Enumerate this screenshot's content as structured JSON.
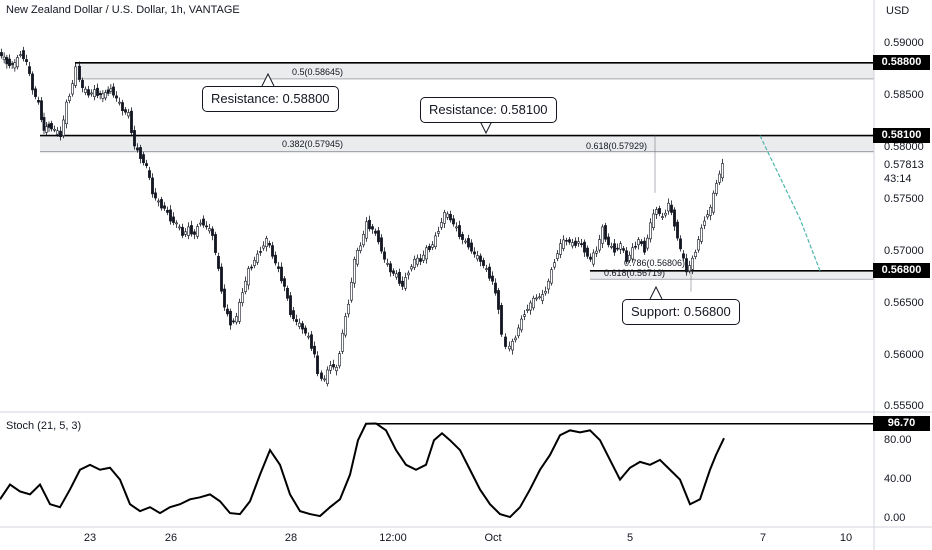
{
  "header": {
    "title": "New Zealand Dollar / U.S. Dollar, 1h, VANTAGE",
    "currency": "USD"
  },
  "stoch": {
    "label": "Stoch (21, 5, 3)",
    "level_badge": "96.70",
    "ticks": [
      "80.00",
      "40.00",
      "0.00"
    ]
  },
  "price_axis": {
    "ticks": [
      "0.59000",
      "0.58500",
      "0.58000",
      "0.57500",
      "0.57000",
      "0.56500",
      "0.56000",
      "0.55500"
    ],
    "last_price": "0.57813",
    "countdown": "43:14"
  },
  "time_axis": {
    "ticks": [
      "23",
      "26",
      "28",
      "12:00",
      "Oct",
      "5",
      "7",
      "10"
    ]
  },
  "levels": {
    "resistance_high": {
      "price": 0.588,
      "badge": "0.58800",
      "callout": "Resistance: 0.58800"
    },
    "resistance_low": {
      "price": 0.581,
      "badge": "0.58100",
      "callout": "Resistance: 0.58100"
    },
    "support": {
      "price": 0.568,
      "badge": "0.56800",
      "callout": "Support: 0.56800"
    }
  },
  "fib_labels": {
    "f1": "0.5(0.58645)",
    "f2": "0.382(0.57945)",
    "f3": "0.618(0.57929)",
    "f4": "0.786(0.56806)",
    "f5": "0.618(0.56719)"
  },
  "chart_data": [
    {
      "type": "candlestick",
      "title": "New Zealand Dollar / U.S. Dollar, 1h, VANTAGE",
      "ylabel": "USD",
      "ylim": [
        0.5545,
        0.5925
      ],
      "x_ticks": [
        "23",
        "26",
        "28",
        "12:00",
        "Oct",
        "5",
        "7",
        "10"
      ],
      "close_path": [
        [
          0,
          0.589
        ],
        [
          8,
          0.588
        ],
        [
          16,
          0.5878
        ],
        [
          22,
          0.589
        ],
        [
          28,
          0.588
        ],
        [
          34,
          0.5855
        ],
        [
          40,
          0.584
        ],
        [
          45,
          0.5815
        ],
        [
          50,
          0.582
        ],
        [
          56,
          0.5815
        ],
        [
          62,
          0.581
        ],
        [
          68,
          0.584
        ],
        [
          74,
          0.586
        ],
        [
          78,
          0.5875
        ],
        [
          84,
          0.5855
        ],
        [
          90,
          0.585
        ],
        [
          96,
          0.5852
        ],
        [
          104,
          0.5848
        ],
        [
          112,
          0.5855
        ],
        [
          118,
          0.5845
        ],
        [
          124,
          0.5835
        ],
        [
          130,
          0.583
        ],
        [
          136,
          0.58
        ],
        [
          142,
          0.579
        ],
        [
          148,
          0.578
        ],
        [
          154,
          0.5755
        ],
        [
          160,
          0.5745
        ],
        [
          166,
          0.574
        ],
        [
          172,
          0.573
        ],
        [
          178,
          0.5725
        ],
        [
          184,
          0.5715
        ],
        [
          190,
          0.572
        ],
        [
          196,
          0.5715
        ],
        [
          202,
          0.5728
        ],
        [
          208,
          0.5722
        ],
        [
          214,
          0.5715
        ],
        [
          220,
          0.568
        ],
        [
          226,
          0.5645
        ],
        [
          232,
          0.563
        ],
        [
          238,
          0.5635
        ],
        [
          244,
          0.566
        ],
        [
          250,
          0.568
        ],
        [
          256,
          0.569
        ],
        [
          262,
          0.57
        ],
        [
          268,
          0.571
        ],
        [
          274,
          0.5695
        ],
        [
          280,
          0.568
        ],
        [
          286,
          0.5665
        ],
        [
          292,
          0.564
        ],
        [
          298,
          0.563
        ],
        [
          304,
          0.5625
        ],
        [
          310,
          0.5615
        ],
        [
          316,
          0.56
        ],
        [
          320,
          0.558
        ],
        [
          326,
          0.5575
        ],
        [
          332,
          0.559
        ],
        [
          338,
          0.5585
        ],
        [
          344,
          0.562
        ],
        [
          350,
          0.565
        ],
        [
          356,
          0.569
        ],
        [
          362,
          0.5705
        ],
        [
          368,
          0.5725
        ],
        [
          374,
          0.572
        ],
        [
          380,
          0.571
        ],
        [
          386,
          0.569
        ],
        [
          392,
          0.568
        ],
        [
          398,
          0.5675
        ],
        [
          404,
          0.5665
        ],
        [
          410,
          0.568
        ],
        [
          416,
          0.569
        ],
        [
          422,
          0.569
        ],
        [
          428,
          0.57
        ],
        [
          434,
          0.5705
        ],
        [
          440,
          0.572
        ],
        [
          446,
          0.5735
        ],
        [
          452,
          0.573
        ],
        [
          458,
          0.572
        ],
        [
          464,
          0.571
        ],
        [
          470,
          0.5705
        ],
        [
          476,
          0.5695
        ],
        [
          482,
          0.569
        ],
        [
          488,
          0.568
        ],
        [
          494,
          0.567
        ],
        [
          500,
          0.5645
        ],
        [
          504,
          0.562
        ],
        [
          508,
          0.5605
        ],
        [
          514,
          0.561
        ],
        [
          520,
          0.5625
        ],
        [
          526,
          0.564
        ],
        [
          532,
          0.5648
        ],
        [
          538,
          0.5655
        ],
        [
          544,
          0.5655
        ],
        [
          550,
          0.567
        ],
        [
          556,
          0.569
        ],
        [
          562,
          0.5705
        ],
        [
          568,
          0.571
        ],
        [
          574,
          0.5705
        ],
        [
          580,
          0.5708
        ],
        [
          586,
          0.57
        ],
        [
          592,
          0.569
        ],
        [
          598,
          0.57
        ],
        [
          604,
          0.572
        ],
        [
          610,
          0.5705
        ],
        [
          616,
          0.57
        ],
        [
          622,
          0.5705
        ],
        [
          628,
          0.569
        ],
        [
          634,
          0.57
        ],
        [
          640,
          0.571
        ],
        [
          646,
          0.57
        ],
        [
          652,
          0.5725
        ],
        [
          658,
          0.574
        ],
        [
          664,
          0.573
        ],
        [
          670,
          0.5745
        ],
        [
          676,
          0.5725
        ],
        [
          682,
          0.57
        ],
        [
          688,
          0.568
        ],
        [
          694,
          0.569
        ],
        [
          700,
          0.571
        ],
        [
          706,
          0.573
        ],
        [
          712,
          0.574
        ],
        [
          718,
          0.5765
        ],
        [
          724,
          0.5781
        ]
      ],
      "projection_path": [
        [
          760,
          0.581
        ],
        [
          780,
          0.577
        ],
        [
          800,
          0.573
        ],
        [
          820,
          0.568
        ]
      ]
    },
    {
      "type": "line",
      "title": "Stoch (21, 5, 3)",
      "ylim": [
        0,
        100
      ],
      "y_ticks": [
        "80.00",
        "40.00",
        "0.00"
      ],
      "points": [
        [
          0,
          20
        ],
        [
          10,
          35
        ],
        [
          20,
          28
        ],
        [
          30,
          25
        ],
        [
          40,
          35
        ],
        [
          50,
          15
        ],
        [
          60,
          12
        ],
        [
          70,
          30
        ],
        [
          80,
          50
        ],
        [
          90,
          55
        ],
        [
          100,
          50
        ],
        [
          110,
          52
        ],
        [
          120,
          40
        ],
        [
          130,
          15
        ],
        [
          140,
          8
        ],
        [
          150,
          12
        ],
        [
          160,
          6
        ],
        [
          170,
          12
        ],
        [
          180,
          15
        ],
        [
          190,
          20
        ],
        [
          200,
          22
        ],
        [
          210,
          25
        ],
        [
          220,
          18
        ],
        [
          230,
          6
        ],
        [
          240,
          5
        ],
        [
          250,
          18
        ],
        [
          260,
          45
        ],
        [
          270,
          70
        ],
        [
          280,
          55
        ],
        [
          290,
          25
        ],
        [
          300,
          8
        ],
        [
          310,
          5
        ],
        [
          320,
          3
        ],
        [
          330,
          12
        ],
        [
          340,
          20
        ],
        [
          350,
          45
        ],
        [
          358,
          80
        ],
        [
          366,
          96.7
        ],
        [
          376,
          97
        ],
        [
          386,
          90
        ],
        [
          396,
          70
        ],
        [
          406,
          55
        ],
        [
          416,
          50
        ],
        [
          426,
          55
        ],
        [
          434,
          80
        ],
        [
          442,
          87
        ],
        [
          450,
          80
        ],
        [
          460,
          70
        ],
        [
          470,
          50
        ],
        [
          480,
          30
        ],
        [
          490,
          15
        ],
        [
          500,
          5
        ],
        [
          510,
          2
        ],
        [
          520,
          12
        ],
        [
          530,
          30
        ],
        [
          540,
          50
        ],
        [
          550,
          65
        ],
        [
          560,
          85
        ],
        [
          570,
          90
        ],
        [
          580,
          88
        ],
        [
          590,
          90
        ],
        [
          600,
          80
        ],
        [
          610,
          60
        ],
        [
          620,
          40
        ],
        [
          630,
          52
        ],
        [
          640,
          58
        ],
        [
          650,
          55
        ],
        [
          660,
          60
        ],
        [
          670,
          50
        ],
        [
          680,
          40
        ],
        [
          690,
          15
        ],
        [
          700,
          20
        ],
        [
          710,
          50
        ],
        [
          716,
          65
        ],
        [
          724,
          82
        ]
      ],
      "reference_level": 96.7
    }
  ]
}
